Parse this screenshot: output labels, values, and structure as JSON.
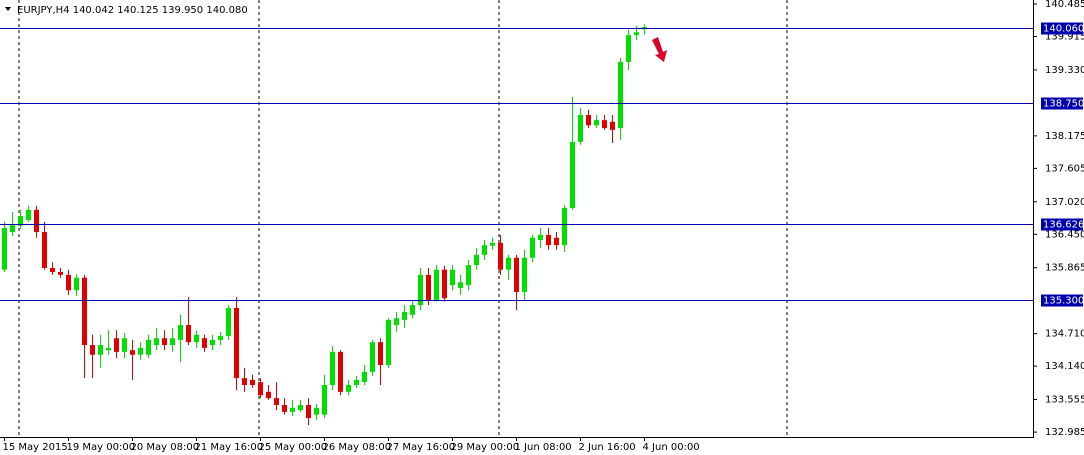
{
  "chart_data": {
    "type": "candlestick",
    "title": "EURJPY,H4",
    "ohlc_labels": [
      "140.042",
      "140.125",
      "139.950",
      "140.080"
    ],
    "categories": [
      "15 May 2015",
      null,
      null,
      null,
      null,
      null,
      null,
      null,
      "19 May 00:00",
      null,
      null,
      null,
      null,
      null,
      null,
      null,
      "20 May 08:00",
      null,
      null,
      null,
      null,
      null,
      null,
      null,
      "21 May 16:00",
      null,
      null,
      null,
      null,
      null,
      null,
      null,
      "25 May 00:00",
      null,
      null,
      null,
      null,
      null,
      null,
      null,
      "26 May 08:00",
      null,
      null,
      null,
      null,
      null,
      null,
      null,
      "27 May 16:00",
      null,
      null,
      null,
      null,
      null,
      null,
      null,
      "29 May 00:00",
      null,
      null,
      null,
      null,
      null,
      null,
      null,
      "1 Jun 08:00",
      null,
      null,
      null,
      null,
      null,
      null,
      null,
      "2 Jun 16:00",
      null,
      null,
      null,
      null,
      null,
      null,
      null,
      "4 Jun 00:00"
    ],
    "open": [
      135.83,
      136.49,
      136.6,
      136.7,
      136.88,
      136.49,
      135.86,
      135.79,
      135.74,
      135.47,
      135.69,
      134.51,
      134.34,
      134.42,
      134.63,
      134.39,
      134.42,
      134.34,
      134.34,
      134.51,
      134.63,
      134.51,
      134.6,
      134.86,
      134.56,
      134.63,
      134.51,
      134.6,
      134.67,
      135.16,
      133.93,
      133.9,
      133.86,
      133.69,
      133.58,
      133.46,
      133.34,
      133.37,
      133.46,
      133.29,
      133.29,
      133.81,
      134.39,
      133.69,
      133.81,
      133.86,
      134.04,
      134.56,
      134.16,
      134.86,
      134.95,
      135.04,
      135.21,
      135.74,
      135.3,
      135.83,
      135.56,
      135.51,
      135.56,
      135.91,
      136.09,
      136.25,
      136.3,
      135.83,
      136.04,
      135.44,
      136.04,
      136.35,
      136.44,
      136.39,
      136.26,
      136.91,
      138.07,
      138.54,
      138.36,
      138.45,
      138.42,
      138.31,
      139.47,
      139.94,
      140.042
    ],
    "high": [
      136.67,
      136.84,
      136.88,
      136.95,
      136.95,
      136.67,
      135.96,
      135.86,
      135.83,
      135.75,
      135.74,
      134.69,
      134.69,
      134.77,
      134.77,
      134.72,
      134.6,
      134.56,
      134.69,
      134.81,
      134.77,
      134.81,
      135.04,
      135.35,
      134.77,
      134.69,
      134.69,
      134.74,
      135.21,
      135.35,
      134.11,
      133.99,
      133.93,
      133.81,
      133.86,
      133.58,
      133.55,
      133.55,
      133.58,
      133.48,
      133.99,
      134.49,
      134.42,
      133.9,
      133.97,
      134.16,
      134.6,
      134.63,
      134.98,
      135.09,
      135.21,
      135.3,
      135.86,
      135.86,
      135.91,
      135.9,
      135.91,
      135.74,
      136.0,
      136.21,
      136.35,
      136.39,
      136.44,
      136.09,
      136.09,
      136.18,
      136.44,
      136.56,
      136.56,
      136.49,
      136.96,
      138.86,
      138.66,
      138.63,
      138.54,
      138.54,
      138.54,
      139.54,
      140.03,
      140.1,
      140.125
    ],
    "low": [
      135.79,
      136.42,
      136.54,
      136.67,
      136.39,
      135.83,
      135.74,
      135.69,
      135.39,
      135.37,
      133.93,
      133.93,
      134.11,
      134.34,
      134.28,
      134.28,
      133.9,
      134.25,
      134.28,
      134.42,
      134.42,
      134.39,
      134.21,
      134.51,
      134.46,
      134.39,
      134.42,
      134.51,
      134.6,
      133.72,
      133.69,
      133.76,
      133.58,
      133.55,
      133.37,
      133.29,
      133.27,
      133.34,
      133.11,
      133.2,
      133.23,
      133.72,
      133.63,
      133.63,
      133.76,
      133.81,
      133.97,
      133.81,
      134.11,
      134.74,
      134.81,
      134.98,
      135.12,
      135.21,
      135.27,
      135.27,
      135.47,
      135.39,
      135.47,
      135.83,
      136.0,
      136.18,
      135.74,
      135.65,
      135.12,
      135.3,
      135.96,
      136.21,
      136.18,
      136.18,
      136.14,
      136.88,
      138.02,
      138.31,
      138.31,
      138.28,
      138.05,
      138.1,
      139.33,
      139.85,
      139.95
    ],
    "close": [
      136.56,
      136.61,
      136.77,
      136.88,
      136.49,
      135.86,
      135.79,
      135.74,
      135.47,
      135.69,
      134.51,
      134.34,
      134.51,
      134.46,
      134.39,
      134.63,
      134.34,
      134.46,
      134.6,
      134.63,
      134.51,
      134.63,
      134.86,
      134.56,
      134.69,
      134.46,
      134.6,
      134.67,
      135.16,
      133.93,
      133.81,
      133.81,
      133.63,
      133.58,
      133.46,
      133.34,
      133.41,
      133.46,
      133.23,
      133.41,
      133.81,
      134.39,
      133.69,
      133.81,
      133.9,
      134.04,
      134.56,
      134.16,
      134.95,
      134.98,
      135.09,
      135.21,
      135.74,
      135.3,
      135.83,
      135.33,
      135.83,
      135.61,
      135.91,
      136.09,
      136.26,
      136.3,
      135.83,
      136.04,
      135.44,
      136.04,
      136.39,
      136.44,
      136.26,
      136.26,
      136.91,
      138.07,
      138.54,
      138.36,
      138.45,
      138.31,
      138.28,
      139.47,
      139.94,
      139.99,
      140.08
    ],
    "up_color": "#00e000",
    "down_color": "#e00000",
    "ylim": [
      132.899,
      140.555
    ],
    "yticks": [
      140.485,
      139.915,
      {
        "value": 139.33,
        "label": "139.330"
      },
      138.175,
      137.605,
      {
        "value": 137.02,
        "label": "137.020"
      },
      {
        "value": 136.45,
        "label": "136.450"
      },
      135.865,
      {
        "value": 134.71,
        "label": "134.710"
      },
      {
        "value": 134.14,
        "label": "134.140"
      },
      133.555,
      132.985
    ],
    "levels": [
      {
        "value": 140.06,
        "label": "140.060"
      },
      {
        "value": 138.75,
        "label": "138.750"
      },
      {
        "value": 136.626,
        "label": "136.626"
      },
      {
        "value": 135.3,
        "label": "135.300"
      }
    ],
    "level_color": "#0000b0"
  }
}
